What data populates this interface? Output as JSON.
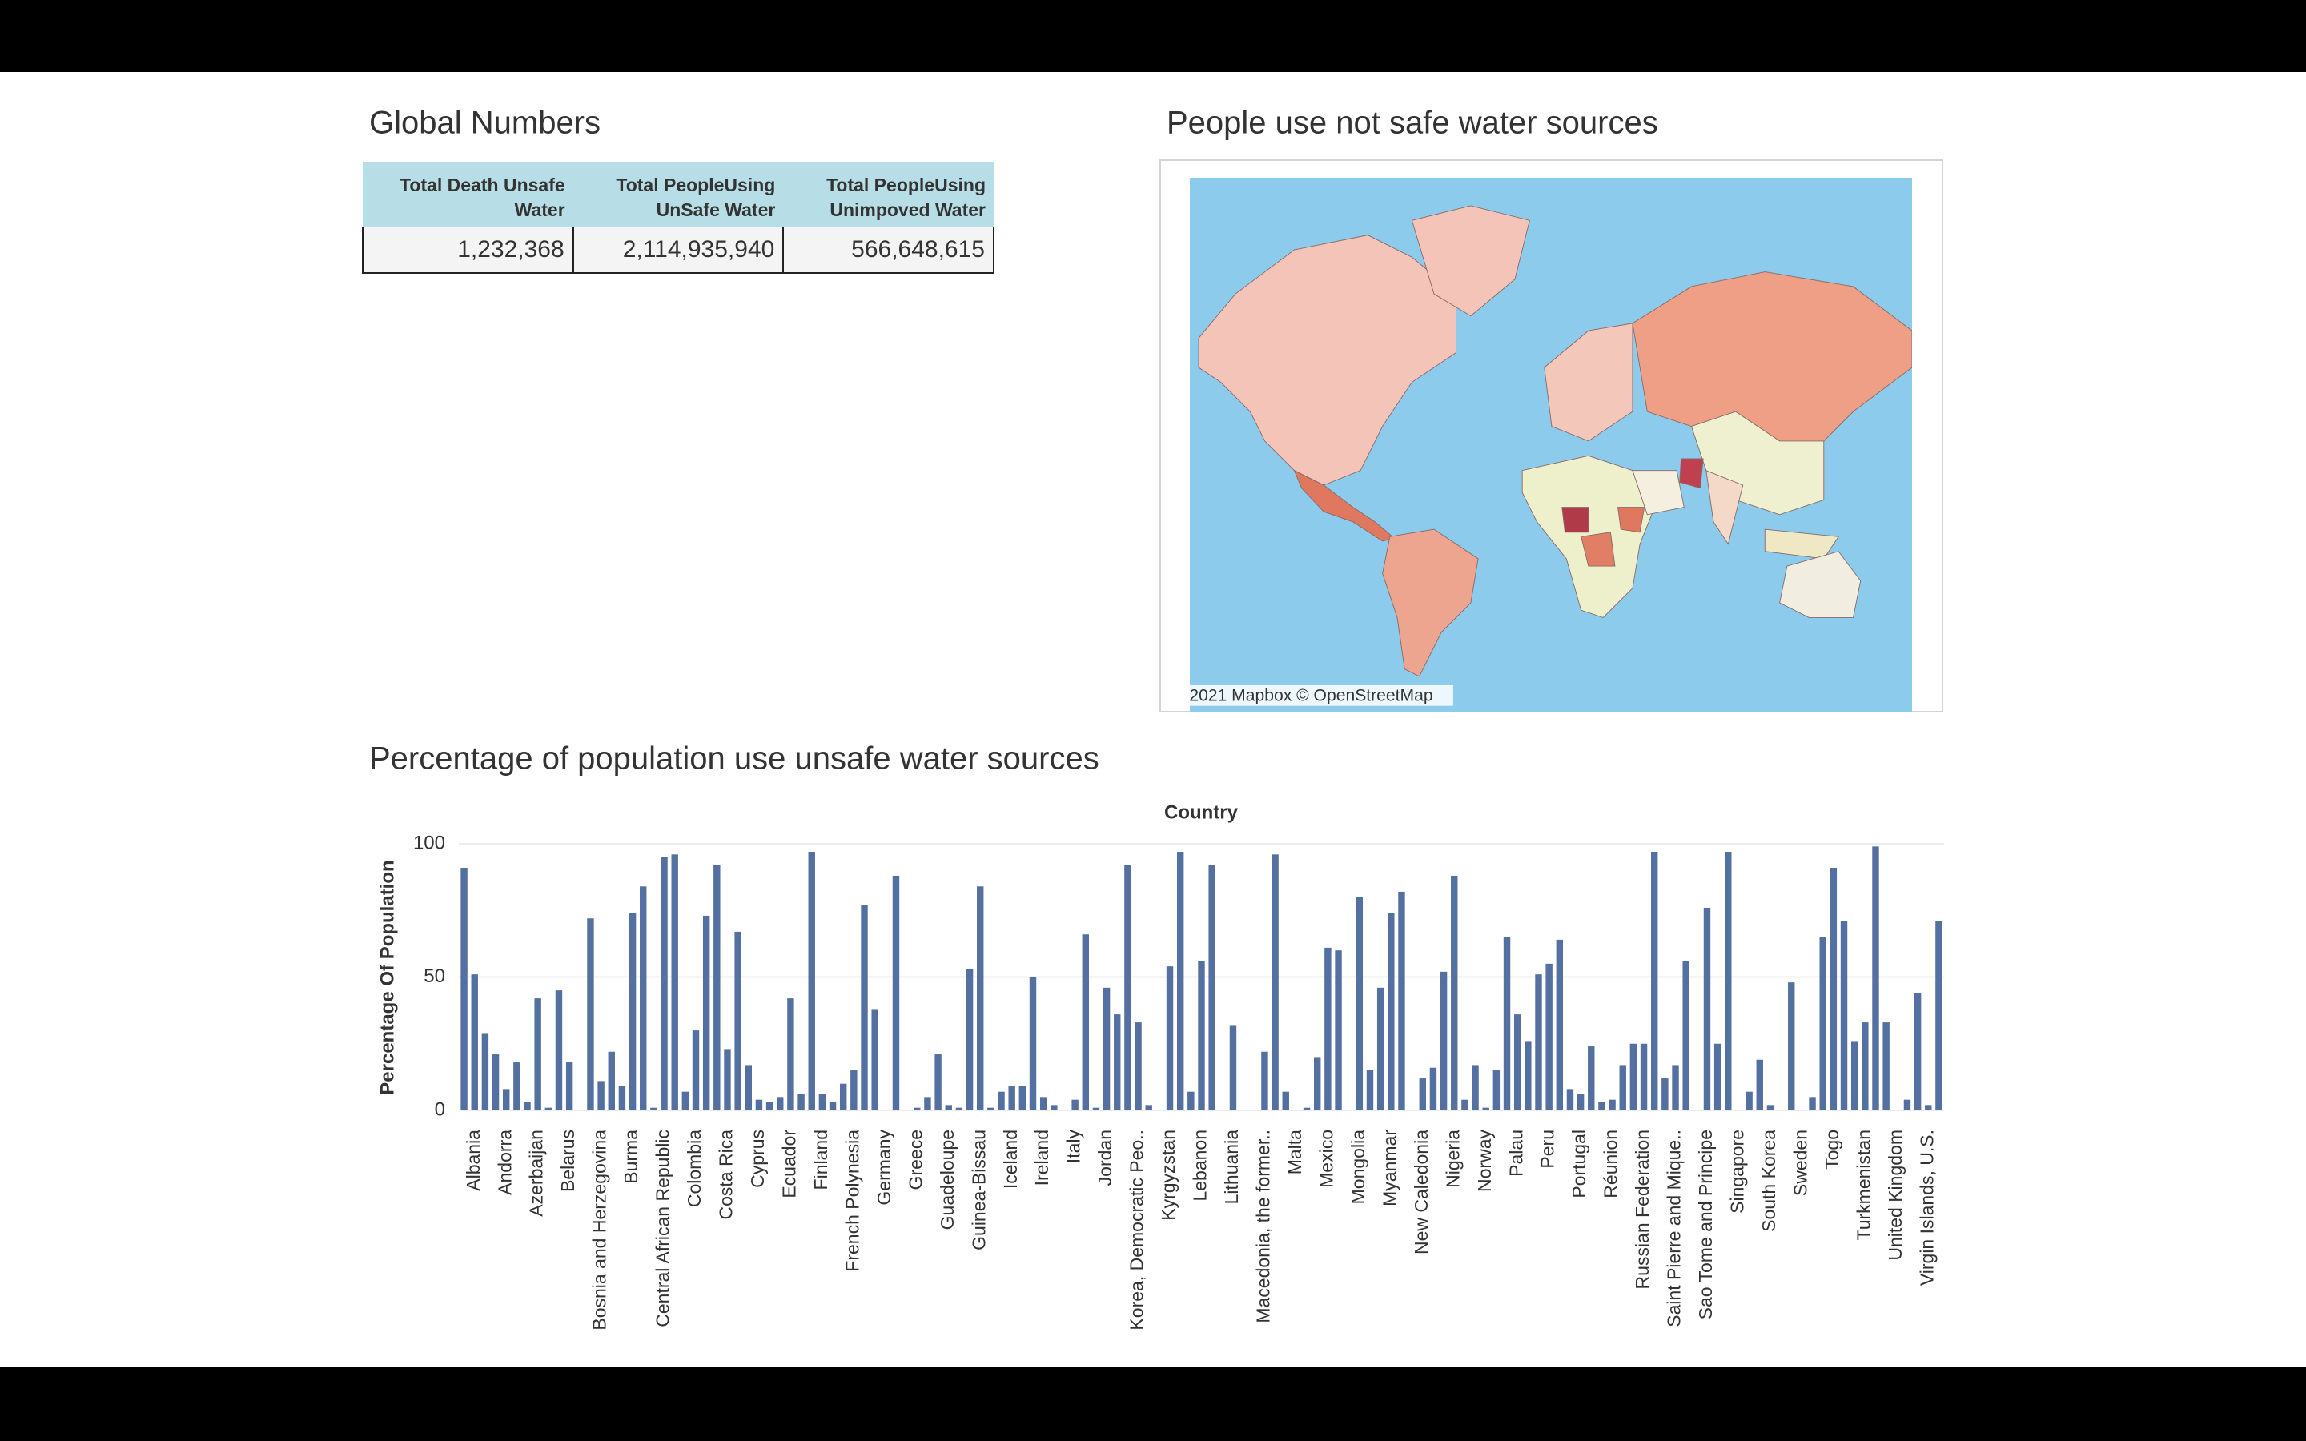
{
  "global_numbers": {
    "title": "Global Numbers",
    "headers": [
      "Total Death Unsafe Water",
      "Total PeopleUsing UnSafe Water",
      "Total PeopleUsing Unimpoved Water"
    ],
    "row": [
      "1,232,368",
      "2,114,935,940",
      "566,648,615"
    ]
  },
  "map": {
    "title": "People use not safe water sources",
    "attribution": "© 2021 Mapbox © OpenStreetMap"
  },
  "chart_data": {
    "type": "bar",
    "title": "Percentage of population use unsafe water sources",
    "x_label": "Country",
    "y_label": "Percentage Of Population",
    "categories": [
      null,
      "Albania",
      null,
      null,
      "Andorra",
      null,
      null,
      "Azerbaijan",
      null,
      null,
      "Belarus",
      null,
      null,
      "Bosnia and Herzegovina",
      null,
      null,
      "Burma",
      null,
      null,
      "Central African Republic",
      null,
      null,
      "Colombia",
      null,
      null,
      "Costa Rica",
      null,
      null,
      "Cyprus",
      null,
      null,
      "Ecuador",
      null,
      null,
      "Finland",
      null,
      null,
      "French Polynesia",
      null,
      null,
      "Germany",
      null,
      null,
      "Greece",
      null,
      null,
      "Guadeloupe",
      null,
      null,
      "Guinea-Bissau",
      null,
      null,
      "Iceland",
      null,
      null,
      "Ireland",
      null,
      null,
      "Italy",
      null,
      null,
      "Jordan",
      null,
      null,
      "Korea, Democratic Peo..",
      null,
      null,
      "Kyrgyzstan",
      null,
      null,
      "Lebanon",
      null,
      null,
      "Lithuania",
      null,
      null,
      "Macedonia, the former..",
      null,
      null,
      "Malta",
      null,
      null,
      "Mexico",
      null,
      null,
      "Mongolia",
      null,
      null,
      "Myanmar",
      null,
      null,
      "New Caledonia",
      null,
      null,
      "Nigeria",
      null,
      null,
      "Norway",
      null,
      null,
      "Palau",
      null,
      null,
      "Peru",
      null,
      null,
      "Portugal",
      null,
      null,
      "Réunion",
      null,
      null,
      "Russian Federation",
      null,
      null,
      "Saint Pierre and Mique..",
      null,
      null,
      "Sao Tome and Principe",
      null,
      null,
      "Singapore",
      null,
      null,
      "South Korea",
      null,
      null,
      "Sweden",
      null,
      null,
      "Togo",
      null,
      null,
      "Turkmenistan",
      null,
      null,
      "United Kingdom",
      null,
      null,
      "Virgin Islands, U.S.",
      null
    ],
    "values": [
      91,
      51,
      29,
      21,
      8,
      18,
      3,
      42,
      1,
      45,
      18,
      0,
      72,
      11,
      22,
      9,
      74,
      84,
      1,
      95,
      96,
      7,
      30,
      73,
      92,
      23,
      67,
      17,
      4,
      3,
      5,
      42,
      6,
      97,
      6,
      3,
      10,
      15,
      77,
      38,
      0,
      88,
      0,
      1,
      5,
      21,
      2,
      1,
      53,
      84,
      1,
      7,
      9,
      9,
      50,
      5,
      2,
      0,
      4,
      66,
      1,
      46,
      36,
      92,
      33,
      2,
      0,
      54,
      97,
      7,
      56,
      92,
      0,
      32,
      0,
      0,
      22,
      96,
      7,
      0,
      1,
      20,
      61,
      60,
      0,
      80,
      15,
      46,
      74,
      82,
      0,
      12,
      16,
      52,
      88,
      4,
      17,
      1,
      15,
      65,
      36,
      26,
      51,
      55,
      64,
      8,
      6,
      24,
      3,
      4,
      17,
      25,
      25,
      97,
      12,
      17,
      56,
      0,
      76,
      25,
      97,
      0,
      7,
      19,
      2,
      0,
      48,
      0,
      5,
      65,
      91,
      71,
      26,
      33,
      99,
      33,
      0,
      4,
      44,
      2,
      71
    ],
    "color": "#5470a0",
    "ylim": [
      0,
      100
    ],
    "yticks": [
      0,
      50,
      100
    ],
    "grid": true
  }
}
